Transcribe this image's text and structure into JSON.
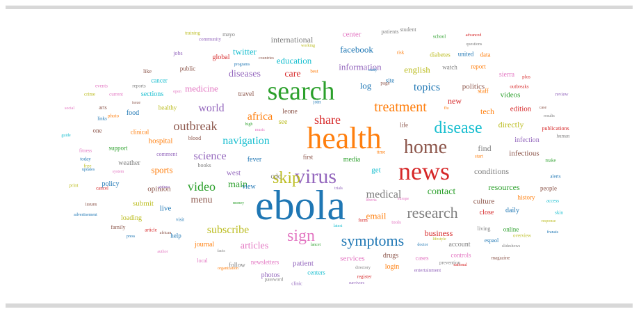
{
  "colors": {
    "blue": "#1f77b4",
    "orange": "#ff7f0e",
    "green": "#2ca02c",
    "red": "#d62728",
    "purple": "#9467bd",
    "brown": "#8c564b",
    "pink": "#e377c2",
    "gray": "#7f7f7f",
    "olive": "#bcbd22",
    "cyan": "#17becf"
  },
  "words": [
    {
      "text": "ebola",
      "color": "#1f77b4"
    },
    {
      "text": "health",
      "color": "#ff7f0e"
    },
    {
      "text": "news",
      "color": "#d62728"
    },
    {
      "text": "search",
      "color": "#2ca02c"
    },
    {
      "text": "virus",
      "color": "#9467bd"
    },
    {
      "text": "home",
      "color": "#8c564b"
    },
    {
      "text": "symptoms",
      "color": "#1f77b4"
    },
    {
      "text": "research",
      "color": "#7f7f7f"
    },
    {
      "text": "disease",
      "color": "#17becf"
    },
    {
      "text": "sign",
      "color": "#e377c2"
    },
    {
      "text": "skip",
      "color": "#bcbd22"
    },
    {
      "text": "treatment",
      "color": "#ff7f0e"
    },
    {
      "text": "outbreak",
      "color": "#8c564b"
    },
    {
      "text": "share",
      "color": "#d62728"
    },
    {
      "text": "subscribe",
      "color": "#bcbd22"
    },
    {
      "text": "video",
      "color": "#2ca02c"
    },
    {
      "text": "medical",
      "color": "#7f7f7f"
    },
    {
      "text": "world",
      "color": "#9467bd"
    },
    {
      "text": "science",
      "color": "#9467bd"
    },
    {
      "text": "navigation",
      "color": "#17becf"
    },
    {
      "text": "africa",
      "color": "#ff7f0e"
    },
    {
      "text": "diseases",
      "color": "#9467bd"
    },
    {
      "text": "contact",
      "color": "#2ca02c"
    },
    {
      "text": "topics",
      "color": "#1f77b4"
    },
    {
      "text": "articles",
      "color": "#e377c2"
    },
    {
      "text": "care",
      "color": "#d62728"
    },
    {
      "text": "email",
      "color": "#ff7f0e"
    },
    {
      "text": "menu",
      "color": "#8c564b"
    },
    {
      "text": "main",
      "color": "#2ca02c"
    },
    {
      "text": "sports",
      "color": "#ff7f0e"
    },
    {
      "text": "education",
      "color": "#17becf"
    },
    {
      "text": "information",
      "color": "#9467bd"
    },
    {
      "text": "facebook",
      "color": "#1f77b4"
    },
    {
      "text": "twitter",
      "color": "#17becf"
    },
    {
      "text": "international",
      "color": "#7f7f7f"
    },
    {
      "text": "english",
      "color": "#bcbd22"
    },
    {
      "text": "medicine",
      "color": "#e377c2"
    },
    {
      "text": "log",
      "color": "#1f77b4"
    },
    {
      "text": "resources",
      "color": "#2ca02c"
    },
    {
      "text": "business",
      "color": "#d62728"
    },
    {
      "text": "cdc",
      "color": "#7f7f7f"
    },
    {
      "text": "conditions",
      "color": "#7f7f7f"
    },
    {
      "text": "find",
      "color": "#7f7f7f"
    },
    {
      "text": "new",
      "color": "#d62728"
    },
    {
      "text": "tech",
      "color": "#ff7f0e"
    },
    {
      "text": "directly",
      "color": "#bcbd22"
    },
    {
      "text": "politics",
      "color": "#8c564b"
    },
    {
      "text": "get",
      "color": "#17becf"
    },
    {
      "text": "opinion",
      "color": "#8c564b"
    },
    {
      "text": "center",
      "color": "#e377c2"
    },
    {
      "text": "patient",
      "color": "#9467bd"
    },
    {
      "text": "services",
      "color": "#e377c2"
    },
    {
      "text": "culture",
      "color": "#8c564b"
    },
    {
      "text": "west",
      "color": "#9467bd"
    },
    {
      "text": "live",
      "color": "#1f77b4"
    },
    {
      "text": "hospital",
      "color": "#ff7f0e"
    },
    {
      "text": "edition",
      "color": "#d62728"
    },
    {
      "text": "videos",
      "color": "#2ca02c"
    },
    {
      "text": "journal",
      "color": "#ff7f0e"
    },
    {
      "text": "drugs",
      "color": "#8c564b"
    },
    {
      "text": "account",
      "color": "#7f7f7f"
    },
    {
      "text": "infectious",
      "color": "#8c564b"
    },
    {
      "text": "fever",
      "color": "#1f77b4"
    },
    {
      "text": "policy",
      "color": "#1f77b4"
    },
    {
      "text": "media",
      "color": "#2ca02c"
    },
    {
      "text": "login",
      "color": "#ff7f0e"
    },
    {
      "text": "see",
      "color": "#bcbd22"
    },
    {
      "text": "weather",
      "color": "#7f7f7f"
    },
    {
      "text": "global",
      "color": "#d62728"
    },
    {
      "text": "infection",
      "color": "#9467bd"
    },
    {
      "text": "sierra",
      "color": "#e377c2"
    },
    {
      "text": "view",
      "color": "#1f77b4"
    },
    {
      "text": "food",
      "color": "#1f77b4"
    },
    {
      "text": "submit",
      "color": "#bcbd22"
    },
    {
      "text": "leone",
      "color": "#8c564b"
    },
    {
      "text": "close",
      "color": "#d62728"
    },
    {
      "text": "daily",
      "color": "#1f77b4"
    },
    {
      "text": "life",
      "color": "#8c564b"
    },
    {
      "text": "first",
      "color": "#8c564b"
    },
    {
      "text": "data",
      "color": "#ff7f0e"
    },
    {
      "text": "photos",
      "color": "#9467bd"
    },
    {
      "text": "loading",
      "color": "#bcbd22"
    },
    {
      "text": "travel",
      "color": "#8c564b"
    },
    {
      "text": "sections",
      "color": "#17becf"
    },
    {
      "text": "follow",
      "color": "#7f7f7f"
    },
    {
      "text": "cases",
      "color": "#e377c2"
    },
    {
      "text": "online",
      "color": "#2ca02c"
    },
    {
      "text": "help",
      "color": "#1f77b4"
    },
    {
      "text": "clinical",
      "color": "#ff7f0e"
    },
    {
      "text": "support",
      "color": "#2ca02c"
    },
    {
      "text": "people",
      "color": "#8c564b"
    },
    {
      "text": "staff",
      "color": "#ff7f0e"
    },
    {
      "text": "site",
      "color": "#1f77b4"
    },
    {
      "text": "public",
      "color": "#8c564b"
    },
    {
      "text": "cancer",
      "color": "#17becf"
    },
    {
      "text": "history",
      "color": "#ff7f0e"
    },
    {
      "text": "healthy",
      "color": "#bcbd22"
    },
    {
      "text": "watch",
      "color": "#7f7f7f"
    },
    {
      "text": "centers",
      "color": "#17becf"
    },
    {
      "text": "controls",
      "color": "#e377c2"
    },
    {
      "text": "living",
      "color": "#7f7f7f"
    },
    {
      "text": "report",
      "color": "#ff7f0e"
    },
    {
      "text": "diabetes",
      "color": "#bcbd22"
    },
    {
      "text": "united",
      "color": "#1f77b4"
    },
    {
      "text": "arts",
      "color": "#8c564b"
    },
    {
      "text": "one",
      "color": "#8c564b"
    },
    {
      "text": "blood",
      "color": "#8c564b"
    },
    {
      "text": "publications",
      "color": "#d62728"
    },
    {
      "text": "local",
      "color": "#e377c2"
    },
    {
      "text": "like",
      "color": "#8c564b"
    },
    {
      "text": "mayo",
      "color": "#7f7f7f"
    },
    {
      "text": "patients",
      "color": "#7f7f7f"
    },
    {
      "text": "student",
      "color": "#7f7f7f"
    },
    {
      "text": "jobs",
      "color": "#9467bd"
    },
    {
      "text": "family",
      "color": "#8c564b"
    },
    {
      "text": "newsletters",
      "color": "#e377c2"
    },
    {
      "text": "magazine",
      "color": "#8c564b"
    },
    {
      "text": "espaol",
      "color": "#1f77b4"
    },
    {
      "text": "comment",
      "color": "#9467bd"
    },
    {
      "text": "books",
      "color": "#7f7f7f"
    },
    {
      "text": "visit",
      "color": "#1f77b4"
    },
    {
      "text": "article",
      "color": "#d62728"
    },
    {
      "text": "crime",
      "color": "#bcbd22"
    },
    {
      "text": "current",
      "color": "#e377c2"
    },
    {
      "text": "fitness",
      "color": "#e377c2"
    },
    {
      "text": "free",
      "color": "#bcbd22"
    },
    {
      "text": "cancel",
      "color": "#d62728"
    },
    {
      "text": "links",
      "color": "#1f77b4"
    },
    {
      "text": "events",
      "color": "#e377c2"
    },
    {
      "text": "reports",
      "color": "#7f7f7f"
    },
    {
      "text": "outbreaks",
      "color": "#d62728"
    },
    {
      "text": "plos",
      "color": "#d62728"
    },
    {
      "text": "review",
      "color": "#9467bd"
    },
    {
      "text": "human",
      "color": "#7f7f7f"
    },
    {
      "text": "access",
      "color": "#17becf"
    },
    {
      "text": "skin",
      "color": "#17becf"
    },
    {
      "text": "prevention",
      "color": "#7f7f7f"
    },
    {
      "text": "entertainment",
      "color": "#9467bd"
    },
    {
      "text": "page",
      "color": "#8c564b"
    },
    {
      "text": "tools",
      "color": "#e377c2"
    },
    {
      "text": "form",
      "color": "#d62728"
    },
    {
      "text": "print",
      "color": "#bcbd22"
    },
    {
      "text": "today",
      "color": "#1f77b4"
    },
    {
      "text": "issues",
      "color": "#8c564b"
    },
    {
      "text": "password",
      "color": "#7f7f7f"
    },
    {
      "text": "clinic",
      "color": "#9467bd"
    },
    {
      "text": "register",
      "color": "#d62728"
    },
    {
      "text": "school",
      "color": "#2ca02c"
    },
    {
      "text": "risk",
      "color": "#ff7f0e"
    },
    {
      "text": "community",
      "color": "#9467bd"
    },
    {
      "text": "training",
      "color": "#bcbd22"
    },
    {
      "text": "best",
      "color": "#ff7f0e"
    },
    {
      "text": "photo",
      "color": "#ff7f0e"
    },
    {
      "text": "overview",
      "color": "#bcbd22"
    },
    {
      "text": "join",
      "color": "#1f77b4"
    },
    {
      "text": "time",
      "color": "#ff7f0e"
    },
    {
      "text": "start",
      "color": "#ff7f0e"
    },
    {
      "text": "alerts",
      "color": "#1f77b4"
    },
    {
      "text": "make",
      "color": "#2ca02c"
    },
    {
      "text": "social",
      "color": "#e377c2"
    },
    {
      "text": "guide",
      "color": "#17becf"
    },
    {
      "text": "updates",
      "color": "#1f77b4"
    },
    {
      "text": "advertisement",
      "color": "#1f77b4"
    },
    {
      "text": "press",
      "color": "#1f77b4"
    },
    {
      "text": "author",
      "color": "#e377c2"
    },
    {
      "text": "organization",
      "color": "#ff7f0e"
    },
    {
      "text": "survivors",
      "color": "#9467bd"
    },
    {
      "text": "directory",
      "color": "#7f7f7f"
    },
    {
      "text": "programs",
      "color": "#1f77b4"
    },
    {
      "text": "working",
      "color": "#bcbd22"
    },
    {
      "text": "advanced",
      "color": "#d62728"
    },
    {
      "text": "questions",
      "color": "#7f7f7f"
    },
    {
      "text": "countries",
      "color": "#8c564b"
    },
    {
      "text": "study",
      "color": "#1f77b4"
    },
    {
      "text": "issue",
      "color": "#8c564b"
    },
    {
      "text": "open",
      "color": "#e377c2"
    },
    {
      "text": "high",
      "color": "#2ca02c"
    },
    {
      "text": "music",
      "color": "#e377c2"
    },
    {
      "text": "flu",
      "color": "#ff7f0e"
    },
    {
      "text": "case",
      "color": "#8c564b"
    },
    {
      "text": "results",
      "color": "#7f7f7f"
    },
    {
      "text": "guinea",
      "color": "#9467bd"
    },
    {
      "text": "system",
      "color": "#e377c2"
    },
    {
      "text": "african",
      "color": "#8c564b"
    },
    {
      "text": "money",
      "color": "#2ca02c"
    },
    {
      "text": "response",
      "color": "#bcbd22"
    },
    {
      "text": "franais",
      "color": "#1f77b4"
    },
    {
      "text": "slideshows",
      "color": "#7f7f7f"
    },
    {
      "text": "national",
      "color": "#d62728"
    },
    {
      "text": "doctor",
      "color": "#1f77b4"
    },
    {
      "text": "lifestyle",
      "color": "#bcbd22"
    },
    {
      "text": "europe",
      "color": "#e377c2"
    },
    {
      "text": "liberia",
      "color": "#e377c2"
    },
    {
      "text": "trials",
      "color": "#9467bd"
    },
    {
      "text": "latest",
      "color": "#17becf"
    },
    {
      "text": "lancet",
      "color": "#2ca02c"
    },
    {
      "text": "facts",
      "color": "#7f7f7f"
    },
    {
      "text": "pain",
      "color": "#d62728"
    },
    {
      "text": "two",
      "color": "#7f7f7f"
    },
    {
      "text": "centre",
      "color": "#ff7f0e"
    }
  ]
}
